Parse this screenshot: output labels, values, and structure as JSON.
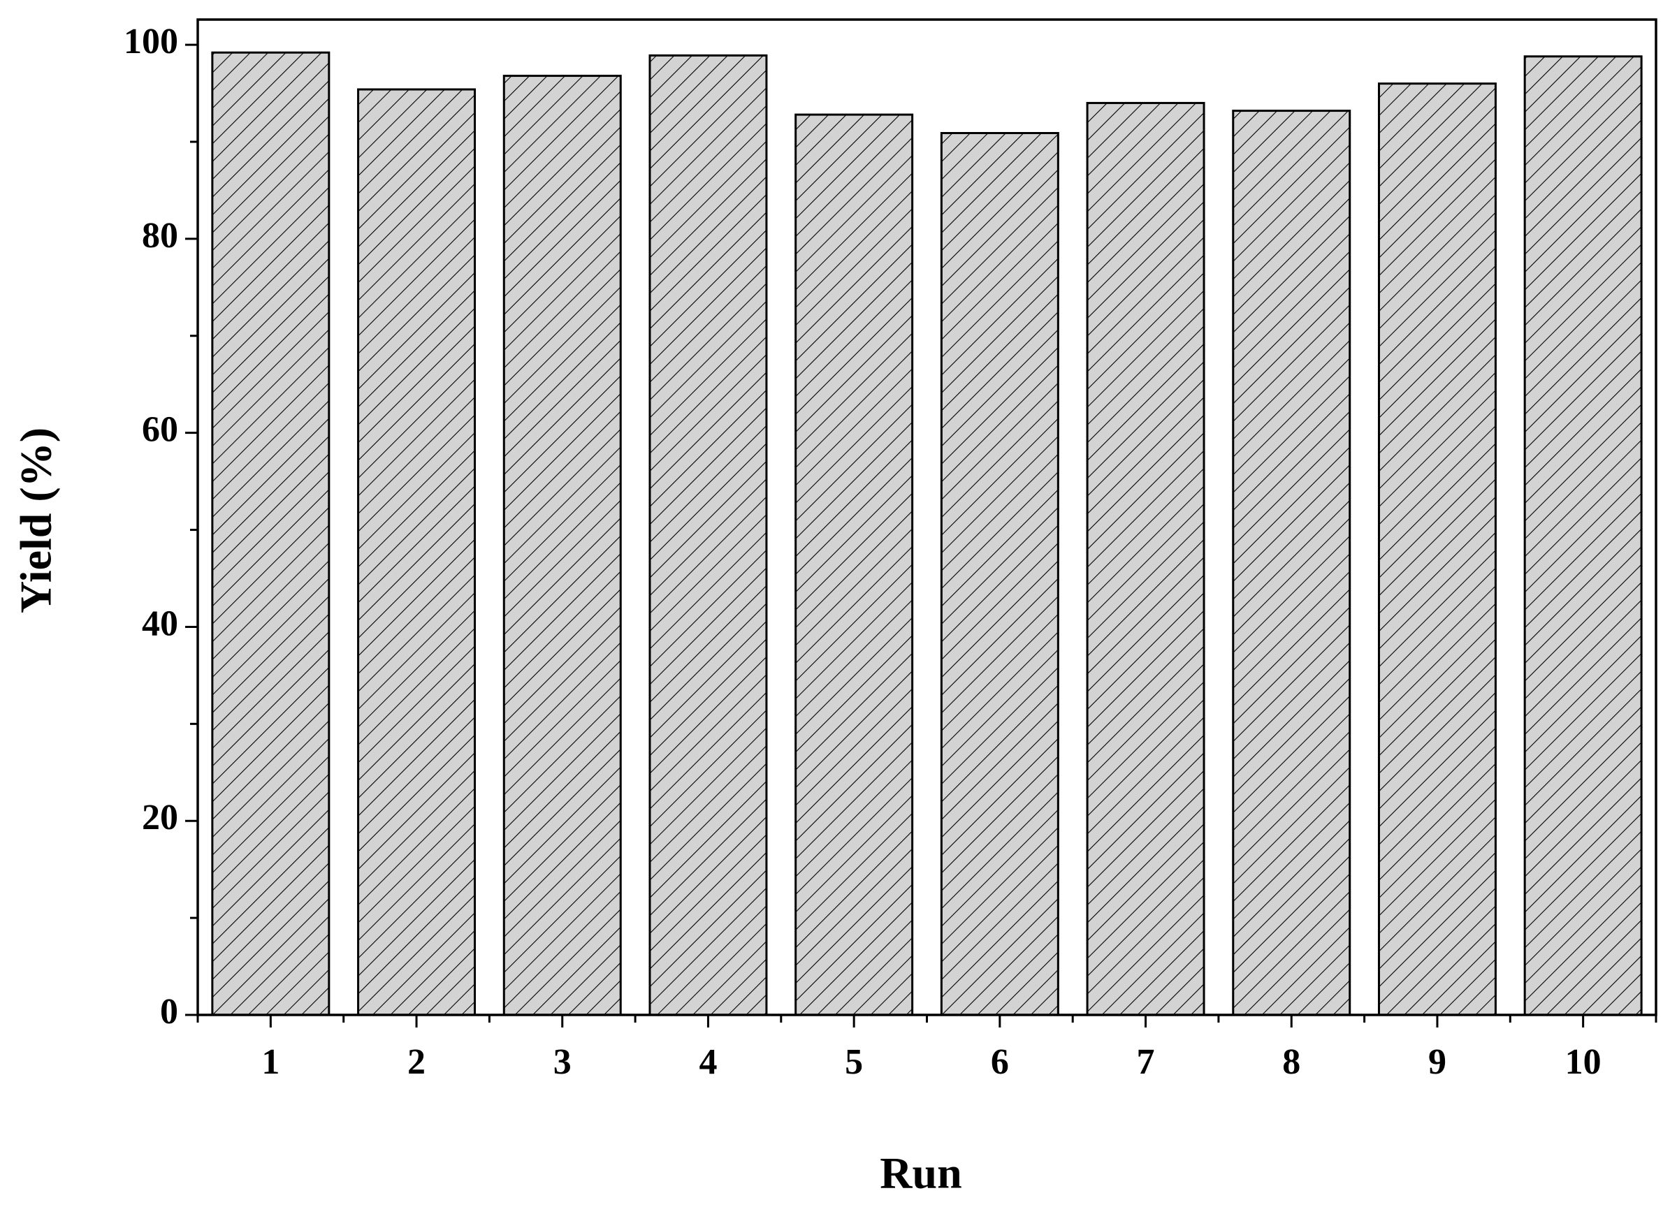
{
  "chart_data": {
    "type": "bar",
    "x_label": "Run",
    "y_label": "Yield (%)",
    "categories": [
      "1",
      "2",
      "3",
      "4",
      "5",
      "6",
      "7",
      "8",
      "9",
      "10"
    ],
    "values": [
      99.2,
      95.4,
      96.8,
      98.9,
      92.8,
      90.9,
      94.0,
      93.2,
      96.0,
      98.8
    ],
    "color": "#d3d3d3",
    "hatch": true,
    "ylim": [
      0,
      102.6
    ],
    "yticks": [
      0,
      20,
      40,
      60,
      80,
      100
    ],
    "yminorticks": [
      10,
      30,
      50,
      70,
      90
    ],
    "grid": false
  }
}
